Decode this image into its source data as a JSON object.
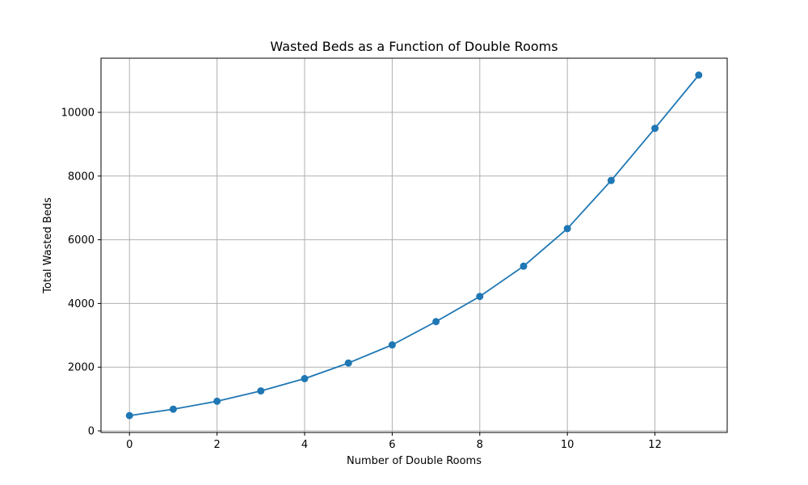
{
  "chart_data": {
    "type": "line",
    "title": "Wasted Beds as a Function of Double Rooms",
    "xlabel": "Number of Double Rooms",
    "ylabel": "Total Wasted Beds",
    "xlim": [
      -0.65,
      13.65
    ],
    "ylim": [
      -50,
      11700
    ],
    "xticks": [
      0,
      2,
      4,
      6,
      8,
      10,
      12
    ],
    "yticks": [
      0,
      2000,
      4000,
      6000,
      8000,
      10000
    ],
    "grid": true,
    "series": [
      {
        "x": [
          0,
          1,
          2,
          3,
          4,
          5,
          6,
          7,
          8,
          9,
          10,
          11,
          12,
          13
        ],
        "values": [
          480,
          680,
          930,
          1255,
          1640,
          2130,
          2700,
          3430,
          4220,
          5170,
          6350,
          7860,
          9500,
          11170
        ],
        "color": "#1f77b4",
        "marker": "circle"
      }
    ]
  }
}
